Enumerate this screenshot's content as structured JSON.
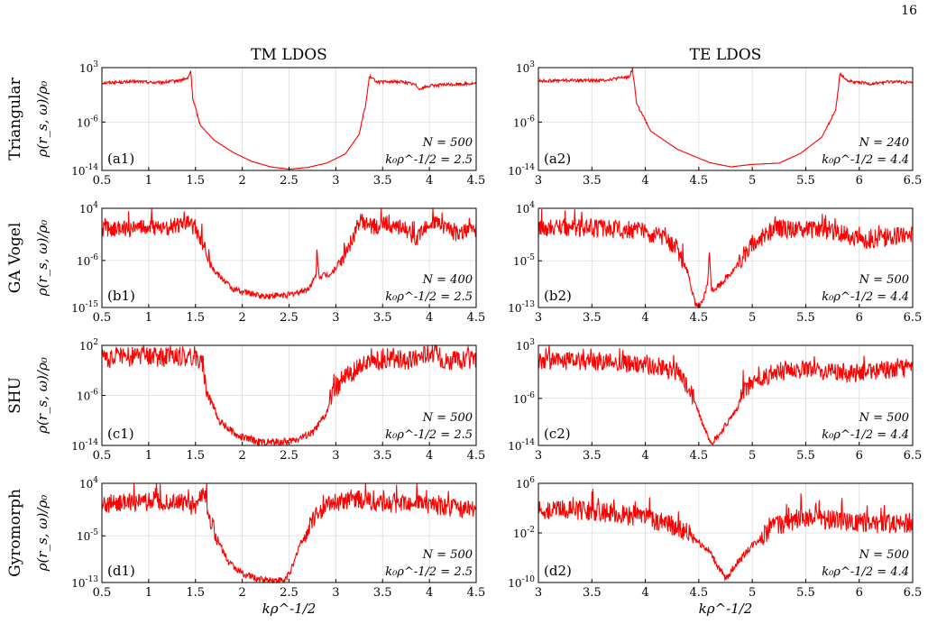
{
  "page_number": "16",
  "column_titles": [
    "TM LDOS",
    "TE LDOS"
  ],
  "row_labels": [
    "Triangular",
    "GA Vogel",
    "SHU",
    "Gyromorph"
  ],
  "y_axis_label": "ρ(r_s, ω)/ρ₀",
  "x_axis_label": "kρ^-1/2",
  "colors": {
    "curve": "#ff0000",
    "grid": "#dcdcdc",
    "axes": "#000000"
  },
  "chart_data": [
    {
      "type": "line",
      "id": "a1",
      "panel_label": "(a1)",
      "row": 0,
      "col": 0,
      "N_text": "N = 500",
      "k0_text": "k₀ρ^-1/2 = 2.5",
      "xlim": [
        0.5,
        4.5
      ],
      "xticks": [
        "0.5",
        "1",
        "1.5",
        "2",
        "2.5",
        "3",
        "3.5",
        "4",
        "4.5"
      ],
      "ylim_exp": [
        -14,
        3
      ],
      "yticks_exp": [
        3,
        -6,
        -14
      ],
      "trace": [
        [
          0.5,
          0.5
        ],
        [
          0.7,
          0.6
        ],
        [
          0.9,
          0.7
        ],
        [
          1.1,
          0.5
        ],
        [
          1.3,
          0.8
        ],
        [
          1.42,
          1.2
        ],
        [
          1.45,
          2.5
        ],
        [
          1.47,
          -2
        ],
        [
          1.55,
          -6.5
        ],
        [
          1.7,
          -9
        ],
        [
          1.9,
          -11
        ],
        [
          2.1,
          -12.5
        ],
        [
          2.3,
          -13.4
        ],
        [
          2.5,
          -13.8
        ],
        [
          2.7,
          -13.5
        ],
        [
          2.9,
          -12.8
        ],
        [
          3.1,
          -11.3
        ],
        [
          3.25,
          -8
        ],
        [
          3.32,
          -3
        ],
        [
          3.36,
          1.5
        ],
        [
          3.45,
          0.6
        ],
        [
          3.7,
          0.7
        ],
        [
          3.85,
          0.2
        ],
        [
          3.9,
          -0.5
        ],
        [
          4.0,
          0.0
        ],
        [
          4.2,
          0.2
        ],
        [
          4.5,
          0.4
        ]
      ]
    },
    {
      "type": "line",
      "id": "a2",
      "panel_label": "(a2)",
      "row": 0,
      "col": 1,
      "N_text": "N = 240",
      "k0_text": "k₀ρ^-1/2 = 4.4",
      "xlim": [
        3,
        6.5
      ],
      "xticks": [
        "3",
        "3.5",
        "4",
        "4.5",
        "5",
        "5.5",
        "6",
        "6.5"
      ],
      "ylim_exp": [
        -14,
        3
      ],
      "yticks_exp": [
        3,
        -6,
        -14
      ],
      "trace": [
        [
          3.0,
          0.8
        ],
        [
          3.3,
          0.9
        ],
        [
          3.6,
          0.9
        ],
        [
          3.85,
          1.5
        ],
        [
          3.88,
          2.8
        ],
        [
          3.92,
          -3
        ],
        [
          4.05,
          -7.5
        ],
        [
          4.3,
          -10.5
        ],
        [
          4.6,
          -12.7
        ],
        [
          4.8,
          -13.4
        ],
        [
          5.0,
          -13.0
        ],
        [
          5.25,
          -12.8
        ],
        [
          5.45,
          -11.2
        ],
        [
          5.65,
          -8.5
        ],
        [
          5.78,
          -4
        ],
        [
          5.82,
          2.0
        ],
        [
          5.9,
          0.8
        ],
        [
          6.1,
          0.3
        ],
        [
          6.3,
          0.7
        ],
        [
          6.5,
          0.5
        ]
      ]
    },
    {
      "type": "line",
      "id": "b1",
      "panel_label": "(b1)",
      "row": 1,
      "col": 0,
      "N_text": "N = 400",
      "k0_text": "k₀ρ^-1/2 = 2.5",
      "xlim": [
        0.5,
        4.5
      ],
      "xticks": [
        "0.5",
        "1",
        "1.5",
        "2",
        "2.5",
        "3",
        "3.5",
        "4",
        "4.5"
      ],
      "ylim_exp": [
        -15,
        4
      ],
      "yticks_exp": [
        4,
        -6,
        -15
      ],
      "trace": [
        [
          0.5,
          0.0
        ],
        [
          0.9,
          0.2
        ],
        [
          1.2,
          0.4
        ],
        [
          1.45,
          1.0
        ],
        [
          1.52,
          -1
        ],
        [
          1.6,
          -3
        ],
        [
          1.7,
          -8
        ],
        [
          1.9,
          -11.5
        ],
        [
          2.2,
          -12.8
        ],
        [
          2.5,
          -12.6
        ],
        [
          2.7,
          -11.5
        ],
        [
          2.79,
          -9
        ],
        [
          2.8,
          -3
        ],
        [
          2.82,
          -9
        ],
        [
          2.95,
          -8.5
        ],
        [
          3.05,
          -6
        ],
        [
          3.15,
          -3
        ],
        [
          3.25,
          1.5
        ],
        [
          3.35,
          0.5
        ],
        [
          3.55,
          1.0
        ],
        [
          3.75,
          0.2
        ],
        [
          3.85,
          -2.5
        ],
        [
          3.95,
          0.5
        ],
        [
          4.1,
          1.0
        ],
        [
          4.3,
          -1
        ],
        [
          4.5,
          0.0
        ]
      ]
    },
    {
      "type": "line",
      "id": "b2",
      "panel_label": "(b2)",
      "row": 1,
      "col": 1,
      "N_text": "N = 500",
      "k0_text": "k₀ρ^-1/2 = 4.4",
      "xlim": [
        3,
        6.5
      ],
      "xticks": [
        "3",
        "3.5",
        "4",
        "4.5",
        "5",
        "5.5",
        "6",
        "6.5"
      ],
      "ylim_exp": [
        -13,
        4
      ],
      "yticks_exp": [
        4,
        -5,
        -13
      ],
      "trace": [
        [
          3.0,
          0.5
        ],
        [
          3.3,
          0.8
        ],
        [
          3.6,
          0.5
        ],
        [
          3.9,
          0.2
        ],
        [
          4.1,
          -0.5
        ],
        [
          4.3,
          -3
        ],
        [
          4.4,
          -7
        ],
        [
          4.47,
          -12.8
        ],
        [
          4.53,
          -12.5
        ],
        [
          4.58,
          -9
        ],
        [
          4.6,
          -4
        ],
        [
          4.62,
          -10
        ],
        [
          4.7,
          -9
        ],
        [
          4.85,
          -6
        ],
        [
          5.0,
          -2
        ],
        [
          5.2,
          0.5
        ],
        [
          5.5,
          0.3
        ],
        [
          5.8,
          0.0
        ],
        [
          6.0,
          -1.5
        ],
        [
          6.3,
          -1
        ],
        [
          6.5,
          -0.5
        ]
      ]
    },
    {
      "type": "line",
      "id": "c1",
      "panel_label": "(c1)",
      "row": 2,
      "col": 0,
      "N_text": "N = 500",
      "k0_text": "k₀ρ^-1/2 = 2.5",
      "xlim": [
        0.5,
        4.5
      ],
      "xticks": [
        "0.5",
        "1",
        "1.5",
        "2",
        "2.5",
        "3",
        "3.5",
        "4",
        "4.5"
      ],
      "ylim_exp": [
        -14,
        2
      ],
      "yticks_exp": [
        2,
        -6,
        -14
      ],
      "trace": [
        [
          0.5,
          0.0
        ],
        [
          0.9,
          0.2
        ],
        [
          1.2,
          0.1
        ],
        [
          1.5,
          0.3
        ],
        [
          1.58,
          -1
        ],
        [
          1.62,
          -5
        ],
        [
          1.75,
          -10
        ],
        [
          1.95,
          -12.5
        ],
        [
          2.2,
          -13.5
        ],
        [
          2.5,
          -13.4
        ],
        [
          2.75,
          -12
        ],
        [
          2.9,
          -9
        ],
        [
          2.95,
          -6
        ],
        [
          3.1,
          -3
        ],
        [
          3.3,
          -1
        ],
        [
          3.55,
          0.0
        ],
        [
          3.8,
          -0.5
        ],
        [
          4.0,
          1.0
        ],
        [
          4.2,
          -0.5
        ],
        [
          4.5,
          -0.3
        ]
      ]
    },
    {
      "type": "line",
      "id": "c2",
      "panel_label": "(c2)",
      "row": 2,
      "col": 1,
      "N_text": "N = 500",
      "k0_text": "k₀ρ^-1/2 = 4.4",
      "xlim": [
        3,
        6.5
      ],
      "xticks": [
        "3",
        "3.5",
        "4",
        "4.5",
        "5",
        "5.5",
        "6",
        "6.5"
      ],
      "ylim_exp": [
        -14,
        3
      ],
      "yticks_exp": [
        3,
        -6,
        -14
      ],
      "trace": [
        [
          3.0,
          0.5
        ],
        [
          3.3,
          0.3
        ],
        [
          3.7,
          0.2
        ],
        [
          4.1,
          -0.5
        ],
        [
          4.3,
          -1.5
        ],
        [
          4.45,
          -6
        ],
        [
          4.55,
          -11
        ],
        [
          4.62,
          -13.5
        ],
        [
          4.7,
          -12
        ],
        [
          4.85,
          -8
        ],
        [
          4.95,
          -4
        ],
        [
          5.2,
          -1.5
        ],
        [
          5.5,
          -1
        ],
        [
          5.9,
          -1.8
        ],
        [
          6.2,
          -1.2
        ],
        [
          6.5,
          -1.0
        ]
      ]
    },
    {
      "type": "line",
      "id": "d1",
      "panel_label": "(d1)",
      "row": 3,
      "col": 0,
      "N_text": "N = 500",
      "k0_text": "k₀ρ^-1/2 = 2.5",
      "xlim": [
        0.5,
        4.5
      ],
      "xticks": [
        "0.5",
        "1",
        "1.5",
        "2",
        "2.5",
        "3",
        "3.5",
        "4",
        "4.5"
      ],
      "ylim_exp": [
        -13,
        4
      ],
      "yticks_exp": [
        4,
        -5,
        -13
      ],
      "trace": [
        [
          0.5,
          0.5
        ],
        [
          0.9,
          0.8
        ],
        [
          1.3,
          0.9
        ],
        [
          1.5,
          0.0
        ],
        [
          1.6,
          2.5
        ],
        [
          1.65,
          -2
        ],
        [
          1.75,
          -6
        ],
        [
          1.85,
          -9.5
        ],
        [
          2.0,
          -11.5
        ],
        [
          2.2,
          -12.5
        ],
        [
          2.45,
          -12.7
        ],
        [
          2.55,
          -10
        ],
        [
          2.6,
          -7
        ],
        [
          2.7,
          -4
        ],
        [
          2.8,
          -1
        ],
        [
          2.95,
          0.5
        ],
        [
          3.2,
          1.5
        ],
        [
          3.5,
          0.5
        ],
        [
          3.8,
          0.5
        ],
        [
          4.1,
          0.0
        ],
        [
          4.5,
          -0.5
        ]
      ]
    },
    {
      "type": "line",
      "id": "d2",
      "panel_label": "(d2)",
      "row": 3,
      "col": 1,
      "N_text": "N = 500",
      "k0_text": "k₀ρ^-1/2 = 4.4",
      "xlim": [
        3,
        6.5
      ],
      "xticks": [
        "3",
        "3.5",
        "4",
        "4.5",
        "5",
        "5.5",
        "6",
        "6.5"
      ],
      "ylim_exp": [
        -10,
        6
      ],
      "yticks_exp": [
        6,
        -2,
        -10
      ],
      "trace": [
        [
          3.0,
          1.5
        ],
        [
          3.3,
          1.8
        ],
        [
          3.6,
          1.3
        ],
        [
          4.0,
          0.5
        ],
        [
          4.2,
          -0.5
        ],
        [
          4.4,
          -2
        ],
        [
          4.6,
          -5
        ],
        [
          4.75,
          -9.5
        ],
        [
          4.85,
          -7
        ],
        [
          5.0,
          -4
        ],
        [
          5.2,
          -1
        ],
        [
          5.5,
          0.5
        ],
        [
          5.8,
          0.0
        ],
        [
          6.2,
          -0.5
        ],
        [
          6.5,
          -0.5
        ]
      ]
    }
  ]
}
